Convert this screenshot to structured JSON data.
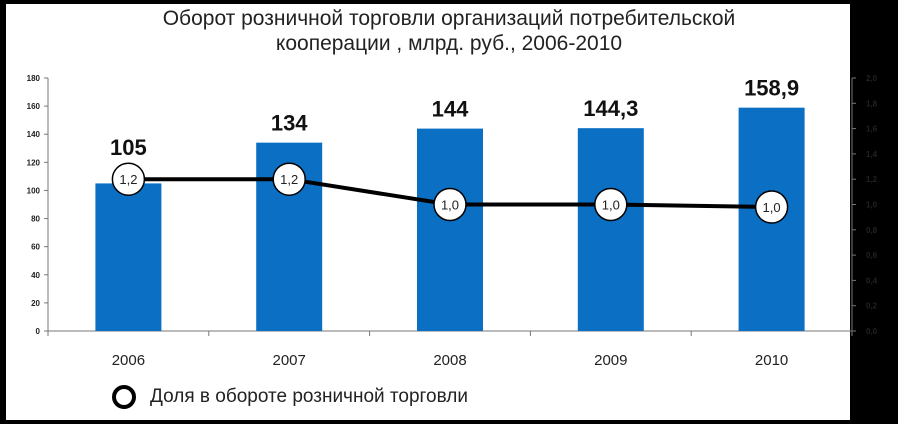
{
  "chart_data": {
    "type": "bar",
    "title": "Оборот розничной торговли организаций потребительской\nкооперации , млрд. руб., 2006-2010",
    "categories": [
      "2006",
      "2007",
      "2008",
      "2009",
      "2010"
    ],
    "series": [
      {
        "type": "bar",
        "axis": "left",
        "values": [
          105,
          134,
          144,
          144.3,
          158.9
        ],
        "labels": [
          "105",
          "134",
          "144",
          "144,3",
          "158,9"
        ],
        "color": "#0b6fc4"
      },
      {
        "type": "line",
        "axis": "right",
        "name": "Доля в обороте розничной торговли",
        "values": [
          1.2,
          1.2,
          1.0,
          1.0,
          0.98
        ],
        "labels": [
          "1,2",
          "1,2",
          "1,0",
          "1,0",
          "1,0"
        ],
        "color": "#000000"
      }
    ],
    "y_left": {
      "ylim": [
        0,
        180
      ],
      "ticks": [
        "0",
        "20",
        "40",
        "60",
        "80",
        "100",
        "120",
        "140",
        "160",
        "180"
      ]
    },
    "y_right": {
      "ylim": [
        0,
        2.0
      ],
      "ticks": [
        "0,0",
        "0,2",
        "0,4",
        "0,6",
        "0,8",
        "1,0",
        "1,2",
        "1,4",
        "1,6",
        "1,8",
        "2,0"
      ]
    },
    "grid": false,
    "legend_position": "bottom-left"
  }
}
